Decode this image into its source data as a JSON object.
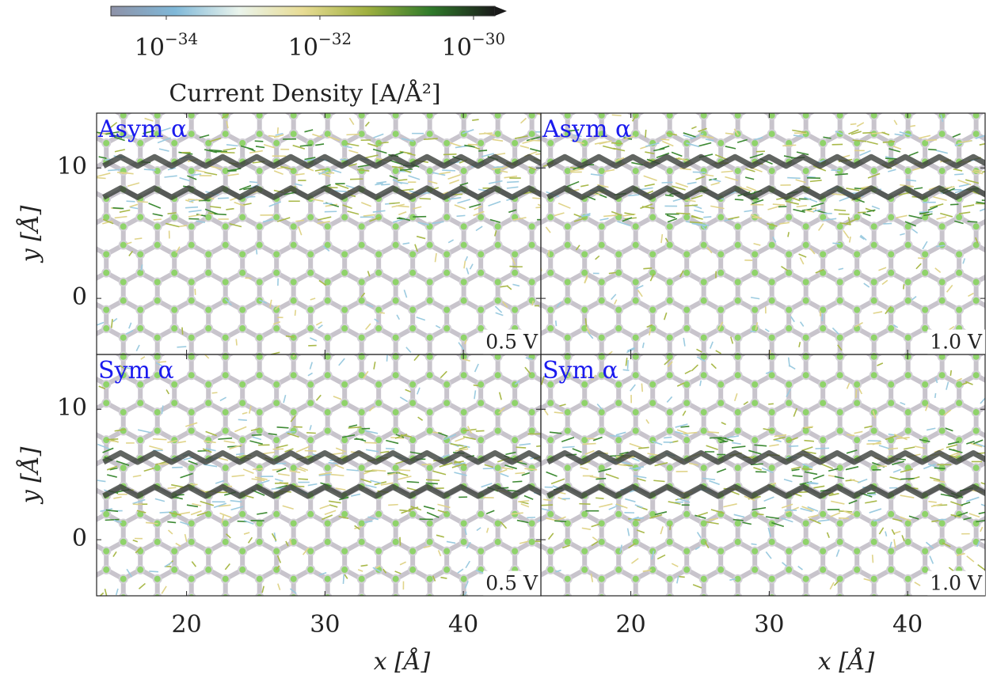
{
  "chart_data": [
    {
      "type": "colorbar",
      "label": "Current Density [A/Å²]",
      "log_scale": true,
      "clim": [
        1.9e-35,
        1.9e-30
      ],
      "ticks": [
        {
          "value": 1e-34,
          "label": "10",
          "exponent": "−34"
        },
        {
          "value": 1e-32,
          "label": "10",
          "exponent": "−32"
        },
        {
          "value": 1e-30,
          "label": "10",
          "exponent": "−30"
        }
      ],
      "colormap": [
        "#8e92a8",
        "#7fb8d8",
        "#eaf4ec",
        "#e8dc94",
        "#9fb040",
        "#2f7a2a",
        "#1a1a1a"
      ]
    },
    {
      "type": "quiver",
      "label": "Asym α",
      "annotation": "0.5 V",
      "xlim": [
        13.5,
        45.6
      ],
      "ylim": [
        -4.3,
        14.2
      ],
      "xticks": [
        20,
        30,
        40
      ],
      "yticks": [
        0,
        10
      ],
      "ylabel": "y [Å]",
      "current_channels_y": [
        10.5,
        8.1
      ]
    },
    {
      "type": "quiver",
      "label": "Asym α",
      "annotation": "1.0 V",
      "xlim": [
        13.5,
        45.6
      ],
      "ylim": [
        -4.3,
        14.2
      ],
      "xticks": [
        20,
        30,
        40
      ],
      "yticks": [
        0,
        10
      ],
      "current_channels_y": [
        10.5,
        8.1
      ]
    },
    {
      "type": "quiver",
      "label": "Sym α",
      "annotation": "0.5 V",
      "xlim": [
        13.5,
        45.6
      ],
      "ylim": [
        -4.3,
        14.2
      ],
      "xticks": [
        20,
        30,
        40
      ],
      "yticks": [
        0,
        10
      ],
      "xlabel": "x [Å]",
      "ylabel": "y [Å]",
      "current_channels_y": [
        6.3,
        3.7
      ]
    },
    {
      "type": "quiver",
      "label": "Sym α",
      "annotation": "1.0 V",
      "xlim": [
        13.5,
        45.6
      ],
      "ylim": [
        -4.3,
        14.2
      ],
      "xticks": [
        20,
        30,
        40
      ],
      "yticks": [
        0,
        10
      ],
      "xlabel": "x [Å]",
      "current_channels_y": [
        6.3,
        3.7
      ]
    }
  ]
}
